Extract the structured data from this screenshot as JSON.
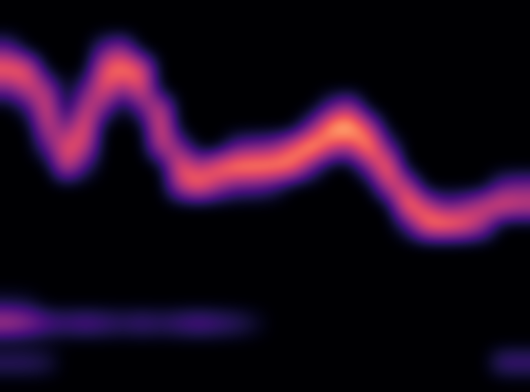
{
  "chart_data": {
    "type": "heatmap",
    "color": "magma",
    "tick_labels": false,
    "zlim": [
      0,
      1
    ],
    "cells": [
      [
        0,
        0,
        0,
        0,
        0,
        0,
        0,
        0,
        0,
        0,
        0,
        0,
        0,
        0,
        0,
        0,
        0,
        0,
        0,
        0,
        0,
        0,
        0,
        0,
        0,
        0,
        0,
        0
      ],
      [
        0,
        0,
        0,
        0,
        0,
        0,
        0,
        0,
        0,
        0,
        0,
        0,
        0,
        0,
        0,
        0,
        0,
        0,
        0,
        0,
        0,
        0,
        0,
        0,
        0,
        0,
        0,
        0
      ],
      [
        0.3,
        0,
        0,
        0,
        0,
        0.3,
        0.45,
        0,
        0,
        0,
        0,
        0,
        0,
        0,
        0,
        0,
        0,
        0,
        0,
        0,
        0,
        0,
        0,
        0,
        0,
        0,
        0,
        0
      ],
      [
        0.75,
        0.7,
        0,
        0,
        0,
        0.7,
        0.8,
        0.7,
        0,
        0,
        0,
        0,
        0,
        0,
        0,
        0,
        0,
        0,
        0,
        0,
        0,
        0,
        0,
        0,
        0,
        0,
        0,
        0
      ],
      [
        0.35,
        0.6,
        0.5,
        0,
        0.3,
        0.7,
        0.4,
        0.7,
        0,
        0,
        0,
        0,
        0,
        0,
        0,
        0,
        0,
        0,
        0,
        0,
        0,
        0,
        0,
        0,
        0,
        0,
        0,
        0
      ],
      [
        0,
        0.2,
        0.7,
        0,
        0.6,
        0.4,
        0,
        0.35,
        0.6,
        0,
        0,
        0,
        0,
        0,
        0,
        0,
        0,
        0.3,
        0.5,
        0,
        0,
        0,
        0,
        0,
        0,
        0,
        0,
        0
      ],
      [
        0,
        0,
        0.6,
        0.3,
        0.75,
        0,
        0,
        0,
        0.75,
        0,
        0,
        0,
        0,
        0,
        0,
        0,
        0.4,
        0.9,
        0.95,
        0.6,
        0,
        0,
        0,
        0,
        0,
        0,
        0,
        0
      ],
      [
        0,
        0,
        0.3,
        0.7,
        0.6,
        0,
        0,
        0,
        0.6,
        0.4,
        0,
        0,
        0.3,
        0.35,
        0.4,
        0.7,
        0.95,
        0.6,
        0.5,
        0.9,
        0.3,
        0,
        0,
        0,
        0,
        0,
        0,
        0
      ],
      [
        0,
        0,
        0,
        0.65,
        0.2,
        0,
        0,
        0,
        0,
        0.75,
        0.5,
        0.75,
        0.85,
        0.85,
        0.85,
        0.8,
        0.3,
        0,
        0,
        0.4,
        0.85,
        0,
        0,
        0,
        0,
        0,
        0,
        0
      ],
      [
        0,
        0,
        0,
        0,
        0,
        0,
        0,
        0,
        0,
        0.55,
        0.8,
        0.5,
        0.3,
        0.3,
        0.2,
        0,
        0,
        0,
        0,
        0,
        0.6,
        0.6,
        0,
        0,
        0,
        0,
        0.3,
        0.35
      ],
      [
        0,
        0,
        0,
        0,
        0,
        0,
        0,
        0,
        0,
        0,
        0,
        0,
        0,
        0,
        0,
        0,
        0,
        0,
        0,
        0,
        0,
        0.85,
        0.6,
        0.3,
        0.4,
        0.6,
        0.7,
        0.6
      ],
      [
        0,
        0,
        0,
        0,
        0,
        0,
        0,
        0,
        0,
        0,
        0,
        0,
        0,
        0,
        0,
        0,
        0,
        0,
        0,
        0,
        0,
        0.2,
        0.8,
        0.85,
        0.75,
        0.5,
        0,
        0
      ],
      [
        0,
        0,
        0,
        0,
        0,
        0,
        0,
        0,
        0,
        0,
        0,
        0,
        0,
        0,
        0,
        0,
        0,
        0,
        0,
        0,
        0,
        0,
        0,
        0,
        0,
        0,
        0,
        0
      ],
      [
        0,
        0,
        0,
        0,
        0,
        0,
        0,
        0,
        0,
        0,
        0,
        0,
        0,
        0,
        0,
        0,
        0,
        0,
        0,
        0,
        0,
        0,
        0,
        0,
        0,
        0,
        0,
        0
      ],
      [
        0,
        0,
        0,
        0,
        0,
        0,
        0,
        0,
        0,
        0,
        0,
        0,
        0,
        0,
        0,
        0,
        0,
        0,
        0,
        0,
        0,
        0,
        0,
        0,
        0,
        0,
        0,
        0
      ],
      [
        0.12,
        0.1,
        0,
        0,
        0,
        0,
        0,
        0,
        0,
        0,
        0,
        0,
        0,
        0,
        0,
        0,
        0,
        0,
        0,
        0,
        0,
        0,
        0,
        0,
        0,
        0,
        0,
        0
      ],
      [
        0.55,
        0.45,
        0.3,
        0.25,
        0.3,
        0.25,
        0.2,
        0.25,
        0.2,
        0.25,
        0.3,
        0.25,
        0.2,
        0.1,
        0,
        0,
        0,
        0,
        0,
        0,
        0,
        0,
        0,
        0,
        0,
        0,
        0,
        0
      ],
      [
        0,
        0,
        0,
        0,
        0,
        0,
        0,
        0,
        0,
        0,
        0,
        0,
        0,
        0,
        0,
        0,
        0,
        0,
        0,
        0,
        0,
        0,
        0,
        0,
        0,
        0,
        0,
        0
      ],
      [
        0.2,
        0.2,
        0.15,
        0,
        0,
        0,
        0,
        0,
        0,
        0,
        0,
        0,
        0,
        0,
        0,
        0,
        0,
        0,
        0,
        0,
        0,
        0,
        0,
        0,
        0,
        0,
        0.25,
        0.25
      ],
      [
        0,
        0,
        0,
        0,
        0,
        0,
        0,
        0,
        0,
        0,
        0,
        0,
        0,
        0,
        0,
        0,
        0,
        0,
        0,
        0,
        0,
        0,
        0,
        0,
        0,
        0,
        0,
        0
      ]
    ]
  }
}
